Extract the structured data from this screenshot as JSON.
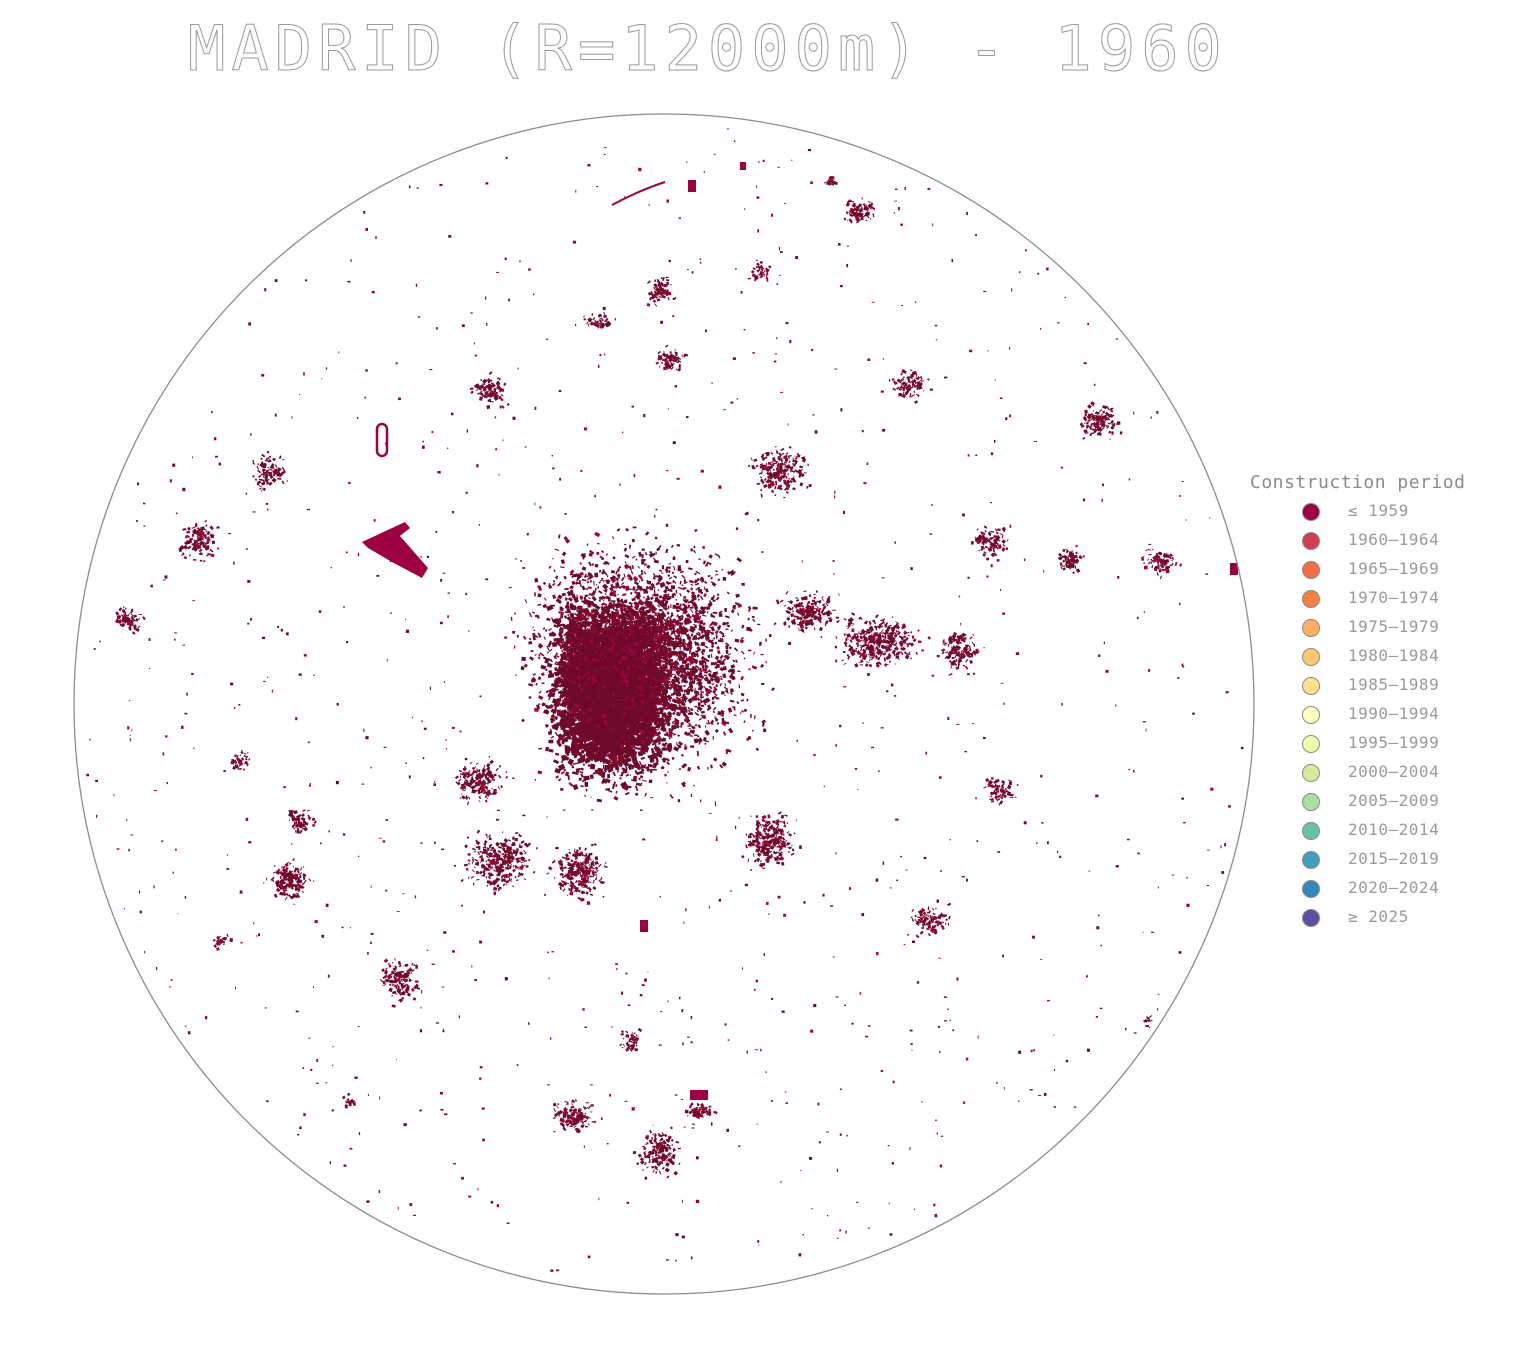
{
  "title": "MADRID (R=12000m) - 1960",
  "legend": {
    "title": "Construction period",
    "items": [
      {
        "label": "≤ 1959",
        "color": "#9e0142"
      },
      {
        "label": "1960–1964",
        "color": "#d53e4f"
      },
      {
        "label": "1965–1969",
        "color": "#f46d43"
      },
      {
        "label": "1970–1974",
        "color": "#f67f44"
      },
      {
        "label": "1975–1979",
        "color": "#fdae61"
      },
      {
        "label": "1980–1984",
        "color": "#fec86f"
      },
      {
        "label": "1985–1989",
        "color": "#fee08b"
      },
      {
        "label": "1990–1994",
        "color": "#ffffbf"
      },
      {
        "label": "1995–1999",
        "color": "#f2faac"
      },
      {
        "label": "2000–2004",
        "color": "#d2ec9b"
      },
      {
        "label": "2005–2009",
        "color": "#abdda4"
      },
      {
        "label": "2010–2014",
        "color": "#66c2a5"
      },
      {
        "label": "2015–2019",
        "color": "#3d9fbc"
      },
      {
        "label": "2020–2024",
        "color": "#3288bd"
      },
      {
        "label": "≥ 2025",
        "color": "#5e4fa2"
      }
    ]
  },
  "map": {
    "building_color_dark": "#6e0a2a",
    "building_color": "#9e0142",
    "boundary_color": "#8c8c8c"
  }
}
